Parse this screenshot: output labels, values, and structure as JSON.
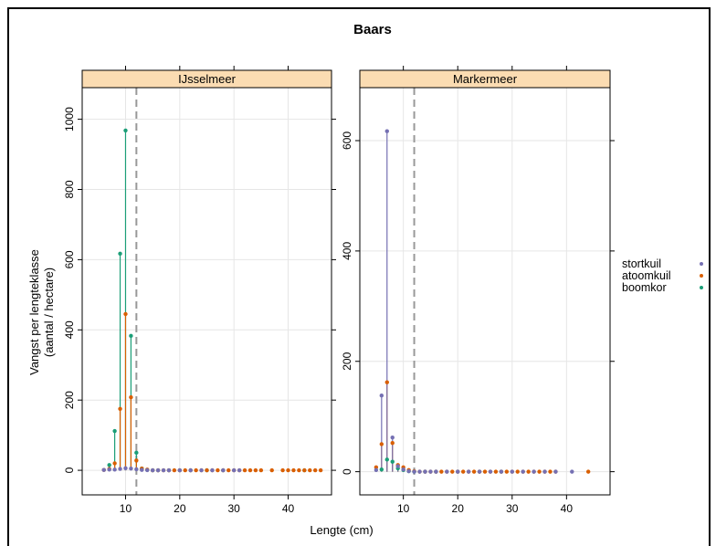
{
  "chart_data": {
    "type": "lollipop",
    "title": "Baars",
    "xlabel": "Lengte (cm)",
    "ylabel_lines": [
      "Vangst per lengteklasse",
      "(aantal / hectare)"
    ],
    "reference_line_x": 12,
    "grid": true,
    "legend_placement": "right",
    "series_info": [
      {
        "name": "stortkuil",
        "color": "#7570b3"
      },
      {
        "name": "atoomkuil",
        "color": "#d95f02"
      },
      {
        "name": "boomkor",
        "color": "#1b9e77"
      }
    ],
    "panels": [
      {
        "name": "IJsselmeer",
        "xlim": [
          2,
          48
        ],
        "ylim": [
          -70,
          1090
        ],
        "x_ticks": [
          10,
          20,
          30,
          40
        ],
        "y_ticks": [
          0,
          200,
          400,
          600,
          800,
          1000
        ],
        "series": [
          {
            "name": "stortkuil",
            "points": [
              [
                6,
                1
              ],
              [
                7,
                2
              ],
              [
                8,
                2
              ],
              [
                9,
                4
              ],
              [
                10,
                6
              ],
              [
                11,
                5
              ],
              [
                12,
                3
              ],
              [
                13,
                1
              ],
              [
                14,
                0.5
              ],
              [
                15,
                0
              ],
              [
                16,
                0
              ],
              [
                17,
                0
              ],
              [
                18,
                0
              ],
              [
                20,
                0
              ],
              [
                22,
                0
              ],
              [
                24,
                0
              ],
              [
                26,
                0
              ],
              [
                28,
                0
              ],
              [
                30,
                0
              ],
              [
                31,
                0
              ]
            ]
          },
          {
            "name": "atoomkuil",
            "points": [
              [
                6,
                1
              ],
              [
                7,
                4
              ],
              [
                8,
                20
              ],
              [
                9,
                175
              ],
              [
                10,
                445
              ],
              [
                11,
                208
              ],
              [
                12,
                28
              ],
              [
                13,
                5
              ],
              [
                14,
                2
              ],
              [
                15,
                0
              ],
              [
                16,
                0
              ],
              [
                17,
                0
              ],
              [
                18,
                0
              ],
              [
                19,
                0
              ],
              [
                20,
                0
              ],
              [
                21,
                0
              ],
              [
                22,
                0
              ],
              [
                23,
                0
              ],
              [
                24,
                0
              ],
              [
                25,
                0
              ],
              [
                26,
                0
              ],
              [
                27,
                0
              ],
              [
                28,
                0
              ],
              [
                29,
                0
              ],
              [
                30,
                0
              ],
              [
                31,
                0
              ],
              [
                32,
                0
              ],
              [
                33,
                0
              ],
              [
                34,
                0
              ],
              [
                35,
                0
              ],
              [
                37,
                0
              ],
              [
                39,
                0
              ],
              [
                40,
                0
              ],
              [
                41,
                0
              ],
              [
                42,
                0
              ],
              [
                43,
                0
              ],
              [
                44,
                0
              ],
              [
                45,
                0
              ],
              [
                46,
                0
              ]
            ]
          },
          {
            "name": "boomkor",
            "points": [
              [
                7,
                15
              ],
              [
                8,
                112
              ],
              [
                9,
                617
              ],
              [
                10,
                968
              ],
              [
                11,
                383
              ],
              [
                12,
                50
              ],
              [
                13,
                5
              ],
              [
                14,
                1
              ],
              [
                15,
                0
              ],
              [
                16,
                0
              ],
              [
                18,
                0
              ],
              [
                20,
                0
              ],
              [
                22,
                0
              ],
              [
                25,
                0
              ],
              [
                28,
                0
              ],
              [
                43,
                0
              ]
            ]
          }
        ]
      },
      {
        "name": "Markermeer",
        "xlim": [
          2,
          48
        ],
        "ylim": [
          -42,
          696
        ],
        "x_ticks": [
          10,
          20,
          30,
          40
        ],
        "y_ticks": [
          0,
          200,
          400,
          600
        ],
        "series": [
          {
            "name": "stortkuil",
            "points": [
              [
                5,
                3
              ],
              [
                6,
                138
              ],
              [
                7,
                617
              ],
              [
                8,
                62
              ],
              [
                9,
                10
              ],
              [
                10,
                4
              ],
              [
                11,
                1
              ],
              [
                12,
                0
              ],
              [
                13,
                0
              ],
              [
                14,
                0
              ],
              [
                15,
                0
              ],
              [
                16,
                0
              ],
              [
                18,
                0
              ],
              [
                20,
                0
              ],
              [
                22,
                0
              ],
              [
                24,
                0
              ],
              [
                26,
                0
              ],
              [
                28,
                0
              ],
              [
                30,
                0
              ],
              [
                32,
                0
              ],
              [
                34,
                0
              ],
              [
                36,
                0
              ],
              [
                38,
                0
              ],
              [
                41,
                0
              ]
            ]
          },
          {
            "name": "atoomkuil",
            "points": [
              [
                5,
                8
              ],
              [
                6,
                50
              ],
              [
                7,
                162
              ],
              [
                8,
                52
              ],
              [
                9,
                12
              ],
              [
                10,
                8
              ],
              [
                11,
                3
              ],
              [
                12,
                1
              ],
              [
                13,
                0
              ],
              [
                14,
                0
              ],
              [
                15,
                0
              ],
              [
                16,
                0
              ],
              [
                17,
                0
              ],
              [
                18,
                0
              ],
              [
                19,
                0
              ],
              [
                20,
                0
              ],
              [
                21,
                0
              ],
              [
                22,
                0
              ],
              [
                23,
                0
              ],
              [
                24,
                0
              ],
              [
                25,
                0
              ],
              [
                26,
                0
              ],
              [
                27,
                0
              ],
              [
                28,
                0
              ],
              [
                29,
                0
              ],
              [
                30,
                0
              ],
              [
                31,
                0
              ],
              [
                32,
                0
              ],
              [
                33,
                0
              ],
              [
                34,
                0
              ],
              [
                35,
                0
              ],
              [
                36,
                0
              ],
              [
                37,
                0
              ],
              [
                38,
                0
              ],
              [
                44,
                0
              ]
            ]
          },
          {
            "name": "boomkor",
            "points": [
              [
                6,
                4
              ],
              [
                7,
                22
              ],
              [
                8,
                18
              ],
              [
                9,
                6
              ],
              [
                10,
                3
              ],
              [
                11,
                1
              ],
              [
                12,
                0
              ],
              [
                14,
                0
              ],
              [
                16,
                0
              ],
              [
                20,
                0
              ],
              [
                24,
                0
              ],
              [
                28,
                0
              ]
            ]
          }
        ]
      }
    ]
  }
}
